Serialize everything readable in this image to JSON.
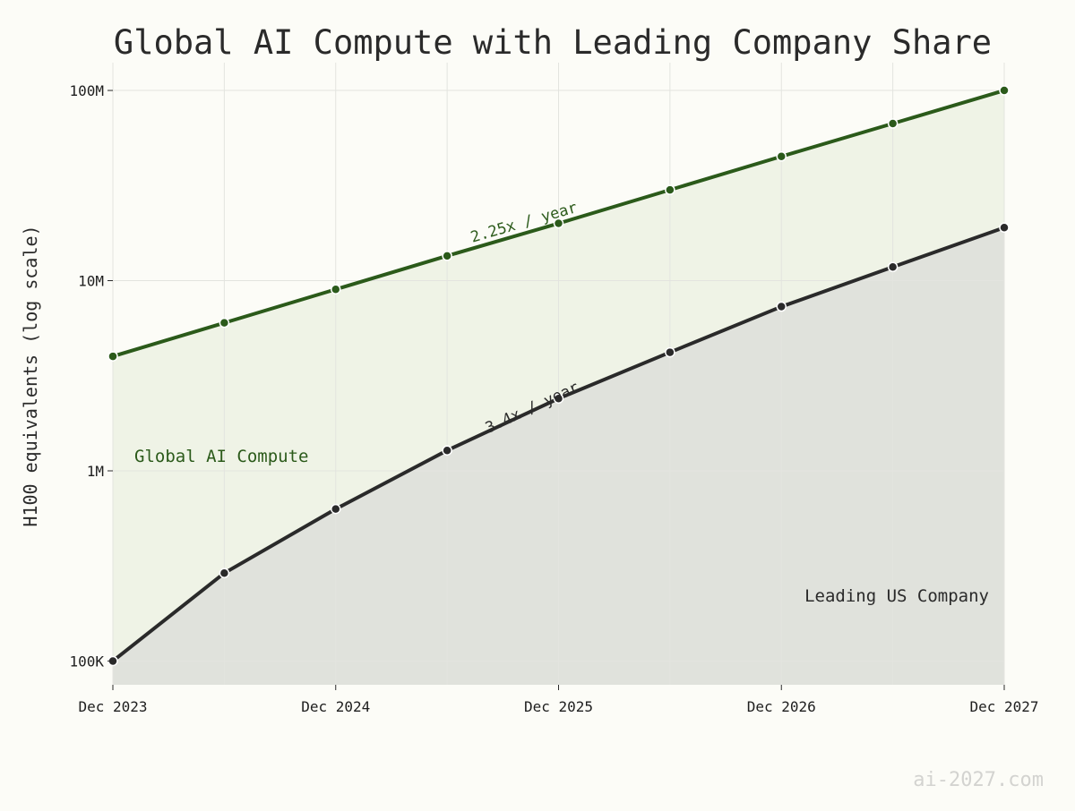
{
  "chart_data": {
    "type": "area",
    "title": "Global AI Compute with Leading Company Share",
    "xlabel": "",
    "ylabel": "H100 equivalents (log scale)",
    "y_scale": "log",
    "ylim": [
      75000,
      140000000
    ],
    "x": [
      "2023-12",
      "2024-06",
      "2024-12",
      "2025-06",
      "2025-12",
      "2026-06",
      "2026-12",
      "2027-06",
      "2027-12"
    ],
    "x_tick_labels": [
      "Dec 2023",
      "Dec 2024",
      "Dec 2025",
      "Dec 2026",
      "Dec 2027"
    ],
    "y_ticks": [
      100000,
      1000000,
      10000000,
      100000000
    ],
    "y_tick_labels": [
      "100K",
      "1M",
      "10M",
      "100M"
    ],
    "grid": true,
    "series": [
      {
        "name": "Global AI Compute",
        "color": "#2b5a1a",
        "fill": "#eff3e6",
        "values": [
          4000000,
          6000000,
          9000000,
          13500000,
          20000000,
          30000000,
          45000000,
          67000000,
          100000000
        ],
        "growth_label": "2.25x / year"
      },
      {
        "name": "Leading US Company",
        "color": "#2a2a2a",
        "fill": "#e0e2dc",
        "values": [
          100000,
          290000,
          630000,
          1280000,
          2400000,
          4200000,
          7300000,
          11800000,
          19000000
        ],
        "growth_label": "3.4x / year"
      }
    ]
  },
  "watermark": "ai-2027.com"
}
